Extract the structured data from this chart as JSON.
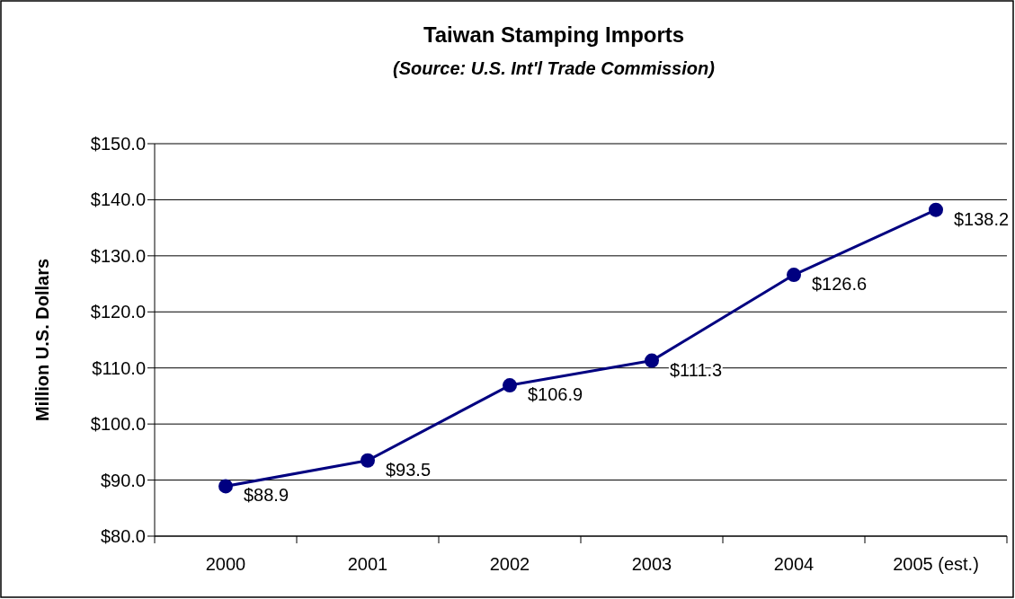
{
  "chart_data": {
    "type": "line",
    "title": "Taiwan Stamping Imports",
    "subtitle": "(Source: U.S. Int'l Trade Commission)",
    "ylabel": "Million U.S. Dollars",
    "categories": [
      "2000",
      "2001",
      "2002",
      "2003",
      "2004",
      "2005 (est.)"
    ],
    "series": [
      {
        "color": "#000080",
        "values": [
          88.9,
          93.5,
          106.9,
          111.3,
          126.6,
          138.2
        ],
        "value_labels": [
          "$88.9",
          "$93.5",
          "$106.9",
          "$111.3",
          "$126.6",
          "$138.2"
        ]
      }
    ],
    "ylim": [
      80,
      150
    ],
    "yticks": [
      {
        "value": 80,
        "label": "$80.0"
      },
      {
        "value": 90,
        "label": "$90.0"
      },
      {
        "value": 100,
        "label": "$100.0"
      },
      {
        "value": 110,
        "label": "$110.0"
      },
      {
        "value": 120,
        "label": "$120.0"
      },
      {
        "value": 130,
        "label": "$130.0"
      },
      {
        "value": 140,
        "label": "$140.0"
      },
      {
        "value": 150,
        "label": "$150.0"
      }
    ],
    "grid": "y",
    "marker": "circle",
    "line_style": "solid"
  }
}
